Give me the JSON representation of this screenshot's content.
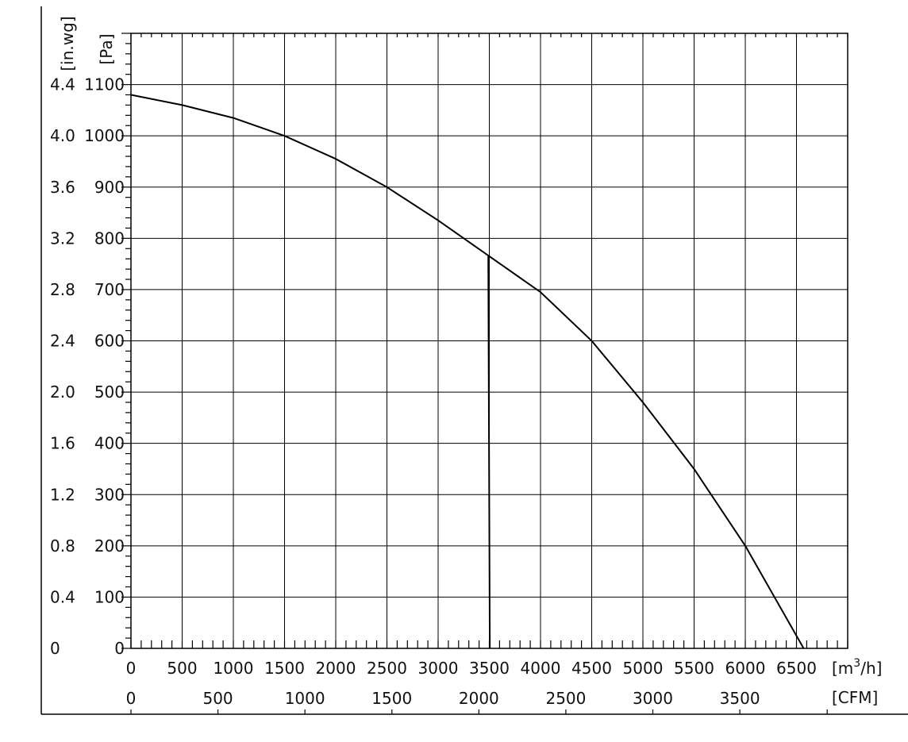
{
  "chart_data": {
    "type": "line",
    "title": "",
    "grid": true,
    "x_axis": {
      "label": "[m³/h]",
      "label_base": "[m",
      "label_sup": "3",
      "label_tail": "/h]",
      "range": [
        0,
        7000
      ],
      "ticks": [
        "0",
        "500",
        "1000",
        "1500",
        "2000",
        "2500",
        "3000",
        "3500",
        "4000",
        "4500",
        "5000",
        "5500",
        "6000",
        "6500"
      ]
    },
    "x2_axis": {
      "label": "[CFM]",
      "ticks": [
        "0",
        "500",
        "1000",
        "1500",
        "2000",
        "2500",
        "3000",
        "3500"
      ],
      "tick_values": [
        0,
        500,
        1000,
        1500,
        2000,
        2500,
        3000,
        3500
      ],
      "cfm_to_m3h": 1.699
    },
    "y_axis": {
      "label": "[Pa]",
      "range": [
        0,
        1200
      ],
      "ticks": [
        "0",
        "100",
        "200",
        "300",
        "400",
        "500",
        "600",
        "700",
        "800",
        "900",
        "1000",
        "1100"
      ]
    },
    "y2_axis": {
      "label": "[in.wg]",
      "ticks": [
        "0",
        "0.4",
        "0.8",
        "1.2",
        "1.6",
        "2.0",
        "2.4",
        "2.8",
        "3.2",
        "3.6",
        "4.0",
        "4.4"
      ]
    },
    "series": [
      {
        "x": [
          0,
          500,
          1000,
          1500,
          2000,
          2500,
          3000,
          3500,
          4000,
          4500,
          5000,
          5500,
          6000,
          6570
        ],
        "y": [
          1080,
          1060,
          1035,
          1000,
          955,
          900,
          835,
          765,
          695,
          600,
          480,
          350,
          200,
          0
        ],
        "color": "#000000"
      },
      {
        "x": [
          3490,
          3505
        ],
        "y": [
          765,
          0
        ],
        "color": "#000000"
      }
    ]
  }
}
